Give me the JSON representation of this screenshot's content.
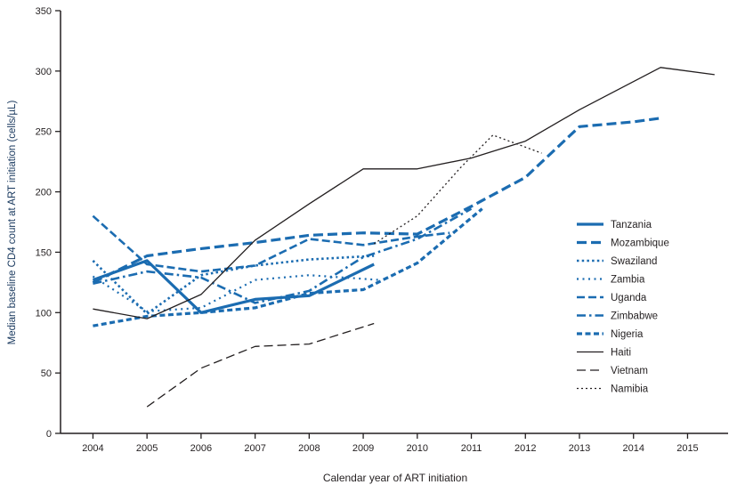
{
  "colors": {
    "blue": "#1B6CB1",
    "black": "#231F20",
    "axis": "#231F20",
    "ylabel_color": "#17375D",
    "background": "#FFFFFF"
  },
  "chart_data": {
    "type": "line",
    "title": "",
    "xlabel": "Calendar year of ART initiation",
    "ylabel": "Median baseline CD4 count at ART initiation (cells/µL)",
    "xlim": [
      2003.4,
      2015.75
    ],
    "ylim": [
      0,
      350
    ],
    "yticks": [
      0,
      50,
      100,
      150,
      200,
      250,
      300,
      350
    ],
    "xticks": [
      2004,
      2005,
      2006,
      2007,
      2008,
      2009,
      2010,
      2011,
      2012,
      2013,
      2014,
      2015
    ],
    "grid": false,
    "legend_position": "inside-right",
    "series": [
      {
        "name": "Tanzania",
        "color": "blue",
        "width": 3.2,
        "dash": "",
        "x": [
          2004,
          2005,
          2006,
          2007,
          2008,
          2009.2
        ],
        "values": [
          127,
          143,
          100,
          111,
          114,
          140
        ]
      },
      {
        "name": "Mozambique",
        "color": "blue",
        "width": 3.2,
        "dash": "11 5",
        "x": [
          2004,
          2005,
          2006,
          2007,
          2008,
          2009,
          2010,
          2011,
          2012,
          2013,
          2014,
          2014.5
        ],
        "values": [
          125,
          147,
          153,
          158,
          164,
          166,
          165,
          188,
          212,
          254,
          258,
          261
        ]
      },
      {
        "name": "Swaziland",
        "color": "blue",
        "width": 2.6,
        "dash": "2.5 3.2",
        "x": [
          2004,
          2005,
          2006,
          2007,
          2008,
          2009.2
        ],
        "values": [
          143,
          99,
          131,
          139,
          144,
          147
        ]
      },
      {
        "name": "Zambia",
        "color": "blue",
        "width": 2.2,
        "dash": "2 4.5",
        "x": [
          2004,
          2005,
          2006,
          2007,
          2008,
          2009.3
        ],
        "values": [
          130,
          101,
          104,
          127,
          131,
          127
        ]
      },
      {
        "name": "Uganda",
        "color": "blue",
        "width": 2.6,
        "dash": "9 4",
        "x": [
          2004,
          2005,
          2006,
          2007,
          2008,
          2009,
          2010,
          2010.6
        ],
        "values": [
          180,
          140,
          134,
          139,
          161,
          156,
          163,
          166
        ]
      },
      {
        "name": "Zimbabwe",
        "color": "blue",
        "width": 2.6,
        "dash": "10 4 2.5 4",
        "x": [
          2004,
          2005,
          2006,
          2007,
          2008,
          2009,
          2010,
          2011
        ],
        "values": [
          124,
          134,
          129,
          108,
          118,
          146,
          161,
          186
        ]
      },
      {
        "name": "Nigeria",
        "color": "blue",
        "width": 3.2,
        "dash": "6 3.5",
        "x": [
          2004,
          2005,
          2006,
          2007,
          2008,
          2009,
          2010,
          2011.2
        ],
        "values": [
          89,
          97,
          100,
          104,
          116,
          119,
          141,
          186
        ]
      },
      {
        "name": "Haiti",
        "color": "black",
        "width": 1.3,
        "dash": "",
        "x": [
          2004,
          2005,
          2006,
          2007,
          2008,
          2009,
          2010,
          2011,
          2012,
          2013,
          2014.5,
          2015.5
        ],
        "values": [
          103,
          95,
          115,
          160,
          190,
          219,
          219,
          228,
          242,
          268,
          303,
          297
        ]
      },
      {
        "name": "Vietnam",
        "color": "black",
        "width": 1.3,
        "dash": "10 5",
        "x": [
          2005,
          2006,
          2007,
          2008,
          2009.2
        ],
        "values": [
          22,
          54,
          72,
          74,
          91
        ]
      },
      {
        "name": "Namibia",
        "color": "black",
        "width": 1.3,
        "dash": "2 3",
        "x": [
          2009.2,
          2010,
          2010.8,
          2011.4,
          2012.3
        ],
        "values": [
          157,
          180,
          220,
          247,
          232
        ]
      }
    ]
  }
}
